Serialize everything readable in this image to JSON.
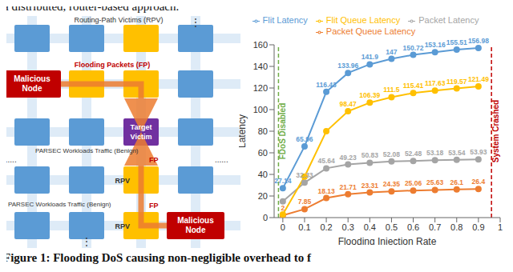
{
  "header": {
    "text": "a distributed, router-based approach."
  },
  "diagram": {
    "labels": {
      "top": "Routing-Path Victims (RPV)",
      "flooding": "Flooding Packets (FP)",
      "malicious": "Malicious Node",
      "target": "Target Victim",
      "fp": "FP",
      "rpv": "RPV",
      "benign": "PARSEC Workloads Traffic (Benign)",
      "ellipsis": "......",
      "vdots": "⋮"
    }
  },
  "chart_data": {
    "type": "line",
    "x": [
      0,
      0.1,
      0.2,
      0.3,
      0.4,
      0.5,
      0.6,
      0.7,
      0.8,
      0.9
    ],
    "xlim": [
      -0.04,
      1
    ],
    "xticks": [
      0,
      0.1,
      0.2,
      0.3,
      0.4,
      0.5,
      0.6,
      0.7,
      0.8,
      0.9,
      1
    ],
    "ylim": [
      0,
      160
    ],
    "yticks": [
      0,
      20,
      40,
      60,
      80,
      100,
      120,
      140,
      160
    ],
    "x_label": "Flooding Injection Rate",
    "y_label": "Latency",
    "legend": "top",
    "data_labels": true,
    "marker": "circle",
    "grid": false,
    "series": [
      {
        "name": "Packet Queue Latency",
        "color": "#ed7d31",
        "values": [
          2,
          7.85,
          18.13,
          21.71,
          23.31,
          24.35,
          25.06,
          25.63,
          26.1,
          26.4
        ],
        "value_labels": [
          "2",
          "7.85",
          "18.13",
          "21.71",
          "23.31",
          "24.35",
          "25.06",
          "25.63",
          "26.1",
          "26.4"
        ]
      },
      {
        "name": "Packet Latency",
        "color": "#a5a5a5",
        "values": [
          15,
          32.33,
          45.64,
          49.23,
          50.83,
          52.08,
          52.48,
          53.18,
          53.54,
          53.93
        ],
        "value_labels": [
          null,
          "32.33",
          "45.64",
          "49.23",
          "50.83",
          "52.08",
          "52.48",
          "53.18",
          "53.54",
          "53.93"
        ]
      },
      {
        "name": "Flit Queue Latency",
        "color": "#ffc000",
        "values": [
          3,
          38,
          80,
          98.47,
          106.39,
          111.5,
          115.41,
          117.63,
          119.57,
          121.49
        ],
        "value_labels": [
          null,
          null,
          null,
          "98.47",
          "106.39",
          "111.5",
          "115.41",
          "117.63",
          "119.57",
          "121.49"
        ]
      },
      {
        "name": "Flit Latency",
        "color": "#5b9bd5",
        "values": [
          27.14,
          65.96,
          116.43,
          133.96,
          141.9,
          147,
          150.72,
          153.16,
          155.51,
          156.98
        ],
        "value_labels": [
          "27.14",
          "65.96",
          "116.43",
          "133.96",
          "141.9",
          "147",
          "150.72",
          "153.16",
          "155.51",
          "156.98"
        ]
      }
    ],
    "annotations": [
      {
        "x": -0.02,
        "label": "FDoS Disabled",
        "color": "#70ad47",
        "line_style": "dashed"
      },
      {
        "x": 0.96,
        "label": "System Crashed",
        "color": "#c00000",
        "line_style": "dashed"
      }
    ]
  },
  "caption": "Figure 1: Flooding DoS causing non-negligible overhead to f"
}
